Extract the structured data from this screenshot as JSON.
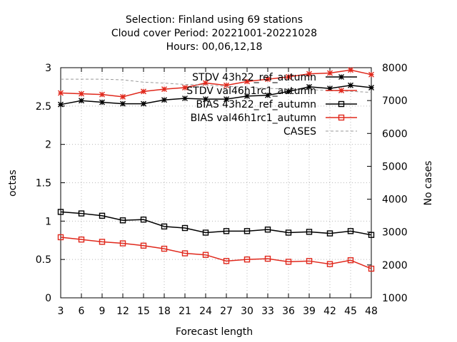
{
  "chart_data": {
    "type": "line",
    "title_lines": [
      "Selection: Finland using    69 stations",
      "Cloud cover   Period: 20221001-20221028",
      "Hours:  00,06,12,18"
    ],
    "xlabel": "Forecast length",
    "ylabel": "octas",
    "y2label": "No cases",
    "x": [
      3,
      6,
      9,
      12,
      15,
      18,
      21,
      24,
      27,
      30,
      33,
      36,
      39,
      42,
      45,
      48
    ],
    "xticks": [
      "3",
      "6",
      "9",
      "12",
      "15",
      "18",
      "21",
      "24",
      "27",
      "30",
      "33",
      "36",
      "39",
      "42",
      "45",
      "48"
    ],
    "ylim": [
      0,
      3
    ],
    "yticks": [
      "0",
      "0.5",
      "1",
      "1.5",
      "2",
      "2.5",
      "3"
    ],
    "y2lim": [
      1000,
      8000
    ],
    "y2ticks": [
      "1000",
      "2000",
      "3000",
      "4000",
      "5000",
      "6000",
      "7000",
      "8000"
    ],
    "grid": true,
    "legend_position": "top-right",
    "series": [
      {
        "name": "STDV 43h22_ref_autumn",
        "axis": "left",
        "color": "#000000",
        "marker": "star",
        "values": [
          2.52,
          2.57,
          2.55,
          2.53,
          2.53,
          2.58,
          2.6,
          2.59,
          2.59,
          2.63,
          2.64,
          2.69,
          2.75,
          2.73,
          2.77,
          2.74
        ]
      },
      {
        "name": "STDV val46h1rc1_autumn",
        "axis": "left",
        "color": "#e0281c",
        "marker": "star",
        "values": [
          2.67,
          2.66,
          2.65,
          2.62,
          2.69,
          2.72,
          2.74,
          2.8,
          2.77,
          2.82,
          2.85,
          2.88,
          2.92,
          2.93,
          2.97,
          2.91
        ]
      },
      {
        "name": "BIAS 43h22_ref_autumn",
        "axis": "left",
        "color": "#000000",
        "marker": "square",
        "values": [
          1.12,
          1.1,
          1.07,
          1.01,
          1.02,
          0.93,
          0.91,
          0.85,
          0.87,
          0.87,
          0.89,
          0.85,
          0.86,
          0.84,
          0.87,
          0.82
        ]
      },
      {
        "name": "BIAS val46h1rc1_autumn",
        "axis": "left",
        "color": "#e0281c",
        "marker": "square",
        "values": [
          0.79,
          0.76,
          0.73,
          0.71,
          0.68,
          0.64,
          0.58,
          0.56,
          0.48,
          0.5,
          0.51,
          0.47,
          0.48,
          0.44,
          0.49,
          0.38
        ]
      },
      {
        "name": "CASES",
        "axis": "right",
        "color": "#999999",
        "marker": "none",
        "dashed": true,
        "values": [
          7650,
          7650,
          7650,
          7630,
          7560,
          7530,
          7490,
          7480,
          7430,
          7410,
          7370,
          7350,
          7330,
          7310,
          7280,
          7250
        ]
      }
    ]
  }
}
